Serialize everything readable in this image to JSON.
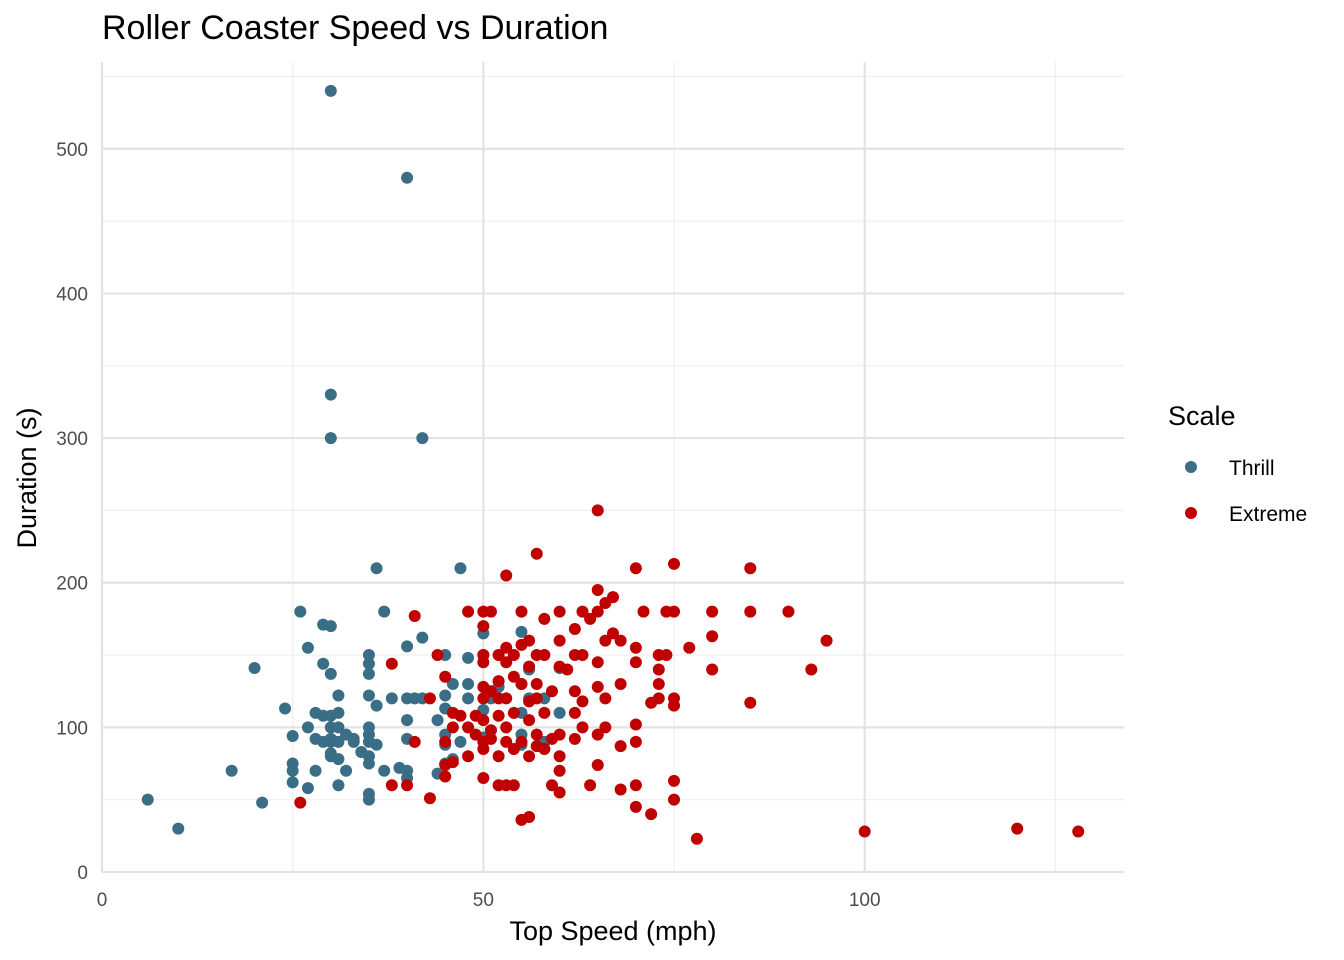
{
  "chart_data": {
    "type": "scatter",
    "title": "Roller Coaster Speed vs Duration",
    "xlabel": "Top Speed (mph)",
    "ylabel": "Duration (s)",
    "xlim": [
      0,
      134
    ],
    "ylim": [
      0,
      560
    ],
    "x_ticks": [
      0,
      50,
      100
    ],
    "y_ticks": [
      0,
      100,
      200,
      300,
      400,
      500
    ],
    "grid": true,
    "legend": {
      "title": "Scale",
      "position": "right"
    },
    "series": [
      {
        "name": "Thrill",
        "color": "#3a6e86",
        "points": [
          [
            30,
            540
          ],
          [
            40,
            480
          ],
          [
            30,
            330
          ],
          [
            30,
            300
          ],
          [
            42,
            300
          ],
          [
            36,
            210
          ],
          [
            47,
            210
          ],
          [
            26,
            180
          ],
          [
            37,
            180
          ],
          [
            29,
            171
          ],
          [
            30,
            170
          ],
          [
            50,
            165
          ],
          [
            55,
            166
          ],
          [
            42,
            162
          ],
          [
            40,
            156
          ],
          [
            27,
            155
          ],
          [
            35,
            150
          ],
          [
            45,
            150
          ],
          [
            48,
            148
          ],
          [
            50,
            150
          ],
          [
            35,
            144
          ],
          [
            29,
            144
          ],
          [
            20,
            141
          ],
          [
            30,
            137
          ],
          [
            35,
            137
          ],
          [
            56,
            140
          ],
          [
            60,
            141
          ],
          [
            46,
            130
          ],
          [
            48,
            130
          ],
          [
            52,
            128
          ],
          [
            55,
            130
          ],
          [
            45,
            122
          ],
          [
            31,
            122
          ],
          [
            35,
            122
          ],
          [
            38,
            120
          ],
          [
            40,
            120
          ],
          [
            41,
            120
          ],
          [
            42,
            120
          ],
          [
            48,
            120
          ],
          [
            51,
            120
          ],
          [
            56,
            120
          ],
          [
            58,
            120
          ],
          [
            36,
            115
          ],
          [
            24,
            113
          ],
          [
            45,
            113
          ],
          [
            50,
            112
          ],
          [
            55,
            110
          ],
          [
            60,
            110
          ],
          [
            28,
            110
          ],
          [
            29,
            108
          ],
          [
            30,
            108
          ],
          [
            31,
            110
          ],
          [
            40,
            105
          ],
          [
            44,
            105
          ],
          [
            27,
            100
          ],
          [
            30,
            100
          ],
          [
            31,
            100
          ],
          [
            35,
            100
          ],
          [
            35,
            95
          ],
          [
            25,
            94
          ],
          [
            28,
            92
          ],
          [
            30,
            92
          ],
          [
            32,
            95
          ],
          [
            33,
            92
          ],
          [
            29,
            90
          ],
          [
            30,
            90
          ],
          [
            31,
            90
          ],
          [
            33,
            90
          ],
          [
            35,
            90
          ],
          [
            36,
            88
          ],
          [
            40,
            92
          ],
          [
            45,
            95
          ],
          [
            45,
            88
          ],
          [
            50,
            93
          ],
          [
            55,
            95
          ],
          [
            55,
            88
          ],
          [
            47,
            90
          ],
          [
            58,
            90
          ],
          [
            34,
            83
          ],
          [
            35,
            80
          ],
          [
            30,
            80
          ],
          [
            31,
            78
          ],
          [
            30,
            82
          ],
          [
            35,
            75
          ],
          [
            37,
            70
          ],
          [
            39,
            72
          ],
          [
            45,
            75
          ],
          [
            46,
            78
          ],
          [
            17,
            70
          ],
          [
            25,
            75
          ],
          [
            25,
            70
          ],
          [
            28,
            70
          ],
          [
            32,
            70
          ],
          [
            40,
            70
          ],
          [
            40,
            65
          ],
          [
            25,
            62
          ],
          [
            27,
            58
          ],
          [
            31,
            60
          ],
          [
            44,
            68
          ],
          [
            35,
            54
          ],
          [
            35,
            50
          ],
          [
            6,
            50
          ],
          [
            21,
            48
          ],
          [
            10,
            30
          ]
        ]
      },
      {
        "name": "Extreme",
        "color": "#c00000",
        "points": [
          [
            65,
            250
          ],
          [
            57,
            220
          ],
          [
            53,
            205
          ],
          [
            75,
            213
          ],
          [
            70,
            210
          ],
          [
            85,
            210
          ],
          [
            65,
            195
          ],
          [
            67,
            190
          ],
          [
            66,
            186
          ],
          [
            64,
            175
          ],
          [
            65,
            180
          ],
          [
            41,
            177
          ],
          [
            48,
            180
          ],
          [
            50,
            180
          ],
          [
            51,
            180
          ],
          [
            55,
            180
          ],
          [
            58,
            175
          ],
          [
            60,
            180
          ],
          [
            63,
            180
          ],
          [
            71,
            180
          ],
          [
            74,
            180
          ],
          [
            75,
            180
          ],
          [
            80,
            180
          ],
          [
            85,
            180
          ],
          [
            90,
            180
          ],
          [
            50,
            170
          ],
          [
            62,
            168
          ],
          [
            67,
            165
          ],
          [
            56,
            160
          ],
          [
            60,
            160
          ],
          [
            66,
            160
          ],
          [
            68,
            160
          ],
          [
            80,
            163
          ],
          [
            95,
            160
          ],
          [
            55,
            157
          ],
          [
            57,
            150
          ],
          [
            53,
            155
          ],
          [
            54,
            150
          ],
          [
            50,
            150
          ],
          [
            52,
            150
          ],
          [
            44,
            150
          ],
          [
            58,
            150
          ],
          [
            62,
            150
          ],
          [
            63,
            150
          ],
          [
            70,
            155
          ],
          [
            73,
            150
          ],
          [
            74,
            150
          ],
          [
            77,
            155
          ],
          [
            38,
            144
          ],
          [
            50,
            145
          ],
          [
            53,
            145
          ],
          [
            56,
            142
          ],
          [
            60,
            142
          ],
          [
            61,
            140
          ],
          [
            65,
            145
          ],
          [
            70,
            145
          ],
          [
            73,
            140
          ],
          [
            80,
            140
          ],
          [
            93,
            140
          ],
          [
            54,
            135
          ],
          [
            45,
            135
          ],
          [
            52,
            132
          ],
          [
            55,
            130
          ],
          [
            57,
            130
          ],
          [
            50,
            128
          ],
          [
            51,
            125
          ],
          [
            65,
            128
          ],
          [
            68,
            130
          ],
          [
            73,
            130
          ],
          [
            59,
            125
          ],
          [
            62,
            125
          ],
          [
            50,
            120
          ],
          [
            52,
            120
          ],
          [
            53,
            120
          ],
          [
            56,
            118
          ],
          [
            57,
            120
          ],
          [
            63,
            118
          ],
          [
            66,
            120
          ],
          [
            73,
            120
          ],
          [
            75,
            120
          ],
          [
            72,
            117
          ],
          [
            75,
            115
          ],
          [
            85,
            117
          ],
          [
            43,
            120
          ],
          [
            46,
            110
          ],
          [
            47,
            108
          ],
          [
            49,
            108
          ],
          [
            50,
            105
          ],
          [
            52,
            108
          ],
          [
            54,
            110
          ],
          [
            56,
            105
          ],
          [
            58,
            110
          ],
          [
            62,
            110
          ],
          [
            66,
            100
          ],
          [
            70,
            102
          ],
          [
            46,
            100
          ],
          [
            48,
            100
          ],
          [
            51,
            98
          ],
          [
            53,
            100
          ],
          [
            49,
            95
          ],
          [
            51,
            92
          ],
          [
            57,
            95
          ],
          [
            60,
            95
          ],
          [
            63,
            100
          ],
          [
            65,
            95
          ],
          [
            45,
            90
          ],
          [
            50,
            90
          ],
          [
            53,
            90
          ],
          [
            55,
            90
          ],
          [
            59,
            92
          ],
          [
            62,
            92
          ],
          [
            68,
            87
          ],
          [
            70,
            90
          ],
          [
            41,
            90
          ],
          [
            50,
            85
          ],
          [
            54,
            85
          ],
          [
            57,
            87
          ],
          [
            58,
            85
          ],
          [
            52,
            80
          ],
          [
            56,
            80
          ],
          [
            60,
            80
          ],
          [
            65,
            74
          ],
          [
            45,
            74
          ],
          [
            46,
            76
          ],
          [
            48,
            80
          ],
          [
            45,
            66
          ],
          [
            50,
            65
          ],
          [
            60,
            70
          ],
          [
            70,
            60
          ],
          [
            75,
            63
          ],
          [
            38,
            60
          ],
          [
            40,
            60
          ],
          [
            52,
            60
          ],
          [
            53,
            60
          ],
          [
            54,
            60
          ],
          [
            59,
            60
          ],
          [
            64,
            60
          ],
          [
            68,
            57
          ],
          [
            60,
            55
          ],
          [
            43,
            51
          ],
          [
            70,
            45
          ],
          [
            72,
            40
          ],
          [
            75,
            50
          ],
          [
            55,
            36
          ],
          [
            56,
            38
          ],
          [
            26,
            48
          ],
          [
            78,
            23
          ],
          [
            100,
            28
          ],
          [
            120,
            30
          ],
          [
            128,
            28
          ]
        ]
      }
    ]
  }
}
